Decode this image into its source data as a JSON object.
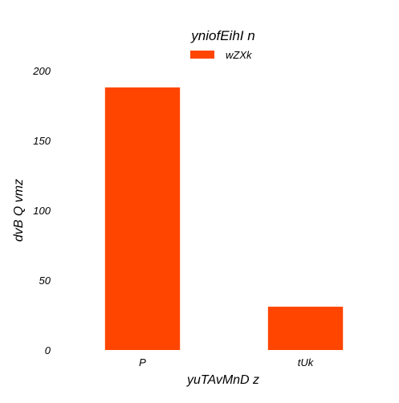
{
  "chart_data": {
    "type": "bar",
    "title": "yniofEihI n",
    "xlabel": "yuTAvMnD z",
    "ylabel": "dvB Q vmz",
    "categories": [
      "P",
      "tUk"
    ],
    "series": [
      {
        "name": "wZXk",
        "values": [
          188,
          31
        ],
        "color": "#ff4500"
      }
    ],
    "ylim": [
      0,
      200
    ],
    "yticks": [
      0,
      50,
      100,
      150,
      200
    ],
    "grid": false,
    "legend_position": "top-center"
  }
}
